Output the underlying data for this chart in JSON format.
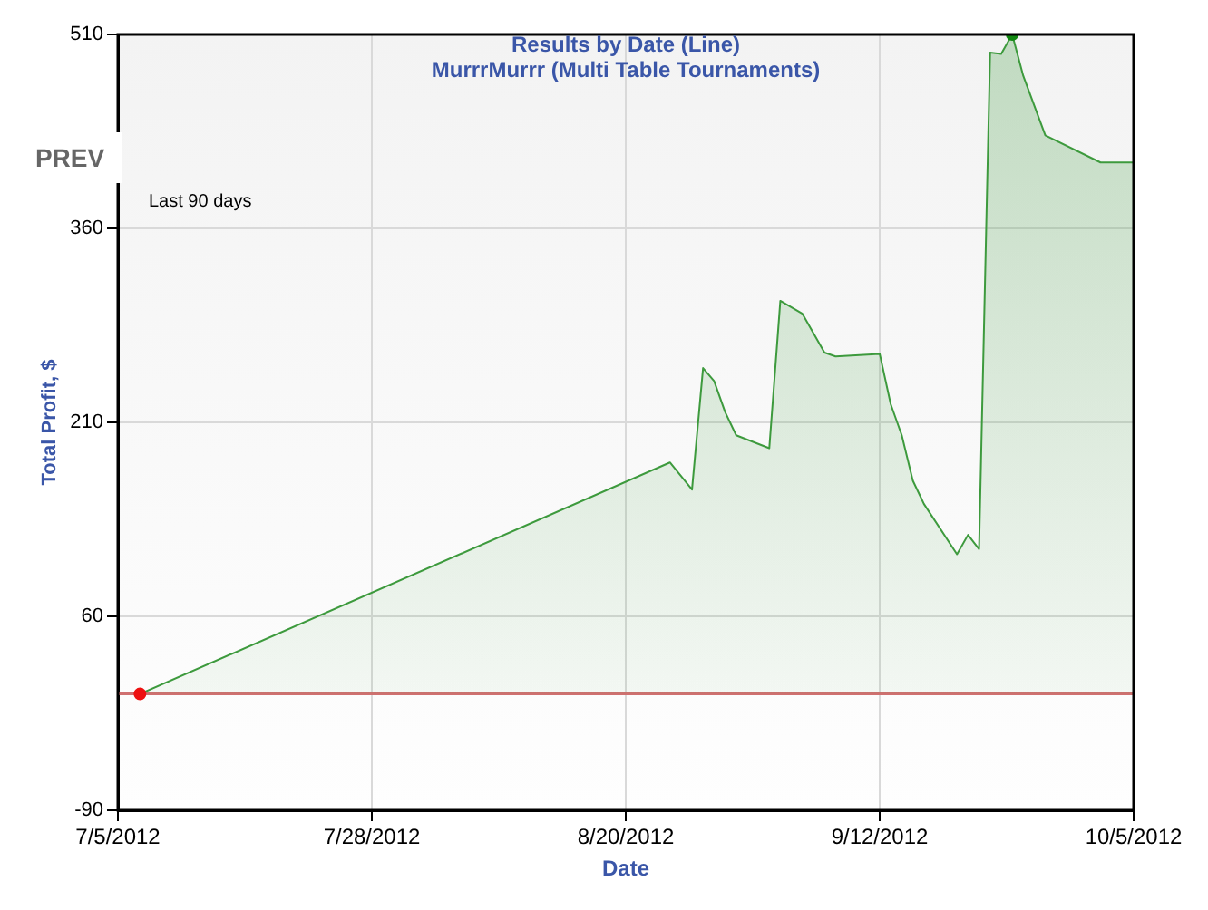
{
  "chart_data": {
    "type": "area",
    "title": "Results by Date (Line)",
    "subtitle": "MurrrMurrr (Multi Table Tournaments)",
    "xlabel": "Date",
    "ylabel": "Total Profit, $",
    "annotations": [
      "Last 90 days",
      "PREV"
    ],
    "series": [
      {
        "color": "#3d9a3d",
        "marker": "none",
        "x": [
          "2012-07-07",
          "2012-08-24",
          "2012-08-26",
          "2012-08-27",
          "2012-08-28",
          "2012-08-29",
          "2012-08-30",
          "2012-09-02",
          "2012-09-03",
          "2012-09-05",
          "2012-09-07",
          "2012-09-08",
          "2012-09-12",
          "2012-09-13",
          "2012-09-14",
          "2012-09-15",
          "2012-09-16",
          "2012-09-19",
          "2012-09-20",
          "2012-09-21",
          "2012-09-22",
          "2012-09-23",
          "2012-09-24",
          "2012-09-25",
          "2012-09-27",
          "2012-10-02",
          "2012-10-05"
        ],
        "values": [
          0,
          179,
          158,
          252,
          242,
          218,
          200,
          190,
          304,
          294,
          264,
          261,
          263,
          224,
          200,
          165,
          147,
          108,
          123,
          112,
          496,
          495,
          510,
          478,
          432,
          411,
          411
        ]
      },
      {
        "type": "scatter",
        "color": "#ee1111",
        "x": [
          "2012-07-07"
        ],
        "values": [
          0
        ]
      },
      {
        "type": "scatter",
        "color": "#118811",
        "x": [
          "2012-09-24"
        ],
        "values": [
          510
        ]
      }
    ],
    "xlim": [
      "2012-07-05",
      "2012-10-05"
    ],
    "xticks": [
      {
        "value": "2012-07-05",
        "label": "7/5/2012"
      },
      {
        "value": "2012-07-28",
        "label": "7/28/2012"
      },
      {
        "value": "2012-08-20",
        "label": "8/20/2012"
      },
      {
        "value": "2012-09-12",
        "label": "9/12/2012"
      },
      {
        "value": "2012-10-05",
        "label": "10/5/2012"
      }
    ],
    "ylim": [
      -90,
      510
    ],
    "yticks": [
      -90,
      60,
      210,
      360,
      510
    ],
    "ref_lines": [
      {
        "axis": "y",
        "value": 0,
        "color": "#d07070"
      }
    ],
    "grid": true,
    "marker": "circle"
  }
}
